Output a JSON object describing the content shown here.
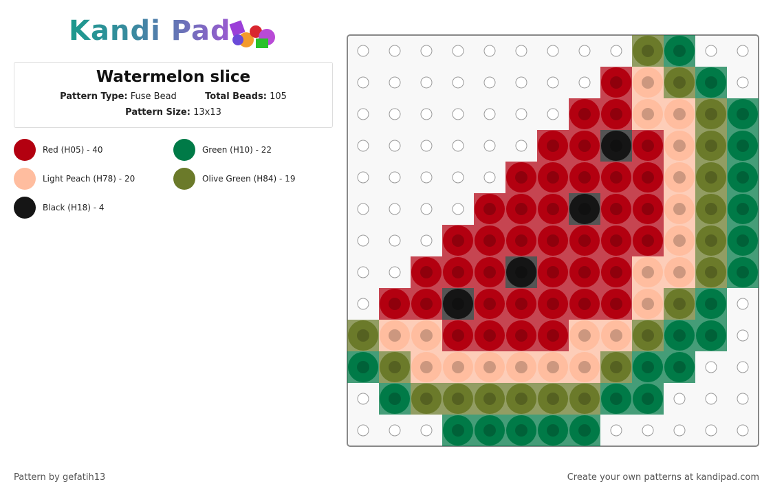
{
  "header": {
    "logo": "Kandi Pad"
  },
  "info": {
    "title": "Watermelon slice",
    "pattern_type_label": "Pattern Type:",
    "pattern_type": "Fuse Bead",
    "total_beads_label": "Total Beads:",
    "total_beads": 105,
    "pattern_size_label": "Pattern Size:",
    "pattern_size": "13x13"
  },
  "legend": [
    {
      "label": "Red (H05) - 40",
      "color": "#b30010"
    },
    {
      "label": "Light Peach (H78) - 20",
      "color": "#ffbd9f"
    },
    {
      "label": "Black (H18) - 4",
      "color": "#151515"
    },
    {
      "label": "Green (H10) - 22",
      "color": "#007a47"
    },
    {
      "label": "Olive Green (H84) - 19",
      "color": "#6b7a2a"
    }
  ],
  "grid": [
    [
      null,
      null,
      null,
      null,
      null,
      null,
      null,
      null,
      null,
      4,
      3,
      null,
      null
    ],
    [
      null,
      null,
      null,
      null,
      null,
      null,
      null,
      null,
      0,
      1,
      4,
      3,
      null
    ],
    [
      null,
      null,
      null,
      null,
      null,
      null,
      null,
      0,
      0,
      1,
      1,
      4,
      3
    ],
    [
      null,
      null,
      null,
      null,
      null,
      null,
      0,
      0,
      2,
      0,
      1,
      4,
      3
    ],
    [
      null,
      null,
      null,
      null,
      null,
      0,
      0,
      0,
      0,
      0,
      1,
      4,
      3
    ],
    [
      null,
      null,
      null,
      null,
      0,
      0,
      0,
      2,
      0,
      0,
      1,
      4,
      3
    ],
    [
      null,
      null,
      null,
      0,
      0,
      0,
      0,
      0,
      0,
      0,
      1,
      4,
      3
    ],
    [
      null,
      null,
      0,
      0,
      0,
      2,
      0,
      0,
      0,
      1,
      1,
      4,
      3
    ],
    [
      null,
      0,
      0,
      2,
      0,
      0,
      0,
      0,
      0,
      1,
      4,
      3,
      null
    ],
    [
      4,
      1,
      1,
      0,
      0,
      0,
      0,
      1,
      1,
      4,
      3,
      3,
      null
    ],
    [
      3,
      4,
      1,
      1,
      1,
      1,
      1,
      1,
      4,
      3,
      3,
      null,
      null
    ],
    [
      null,
      3,
      4,
      4,
      4,
      4,
      4,
      4,
      3,
      3,
      null,
      null,
      null
    ],
    [
      null,
      null,
      null,
      3,
      3,
      3,
      3,
      3,
      null,
      null,
      null,
      null,
      null
    ]
  ],
  "footer": {
    "credit": "Pattern by gefatih13",
    "promo": "Create your own patterns at kandipad.com"
  }
}
